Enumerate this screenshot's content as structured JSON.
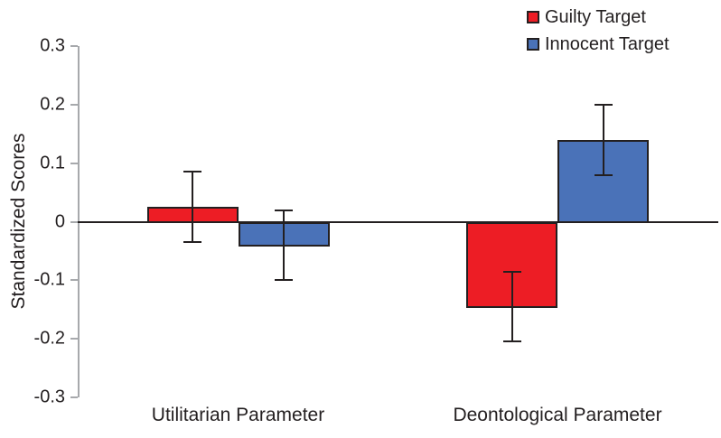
{
  "figure": {
    "background": "#ffffff",
    "text_color": "#231f20",
    "axis_color": "#a7a9ac",
    "zero_line_color": "#231f20"
  },
  "chart_data": {
    "type": "bar",
    "title": "",
    "xlabel": "",
    "ylabel": "Standardized Scores",
    "categories": [
      "Utilitarian Parameter",
      "Deontological Parameter"
    ],
    "series": [
      {
        "name": "Guilty Target",
        "color": "#ed1d25",
        "values": [
          0.025,
          -0.145
        ],
        "error": [
          0.06,
          0.06
        ]
      },
      {
        "name": "Innocent Target",
        "color": "#4a72b8",
        "values": [
          -0.04,
          0.14
        ],
        "error": [
          0.06,
          0.06
        ]
      }
    ],
    "ylim": [
      -0.3,
      0.3
    ],
    "yticks": [
      0.3,
      0.2,
      0.1,
      0,
      -0.1,
      -0.2,
      -0.3
    ],
    "ytick_labels": [
      "0.3",
      "0.2",
      "0.1",
      "0",
      "-0.1",
      "-0.2",
      "-0.3"
    ],
    "error_bars": true,
    "grid": false,
    "legend_position": "top-right"
  }
}
